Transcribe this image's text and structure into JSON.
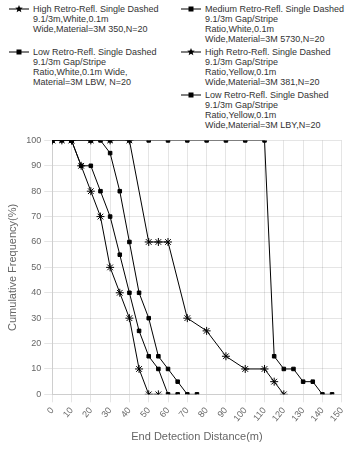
{
  "chart_data": {
    "type": "line",
    "xlabel": "End Detection Distance(m)",
    "ylabel": "Cumulative Frequency(%)",
    "xlim": [
      0,
      150
    ],
    "ylim": [
      0,
      100
    ],
    "xticks": [
      0,
      10,
      20,
      30,
      40,
      50,
      60,
      70,
      80,
      90,
      100,
      110,
      120,
      130,
      140,
      150
    ],
    "yticks": [
      0,
      10,
      20,
      30,
      40,
      50,
      60,
      70,
      80,
      90,
      100
    ],
    "grid": true,
    "legend": "upper right",
    "series": [
      {
        "name": "High Retro-Refl. Single Dashed\n9.1/3m,White,0.1m\nWide,Material=3M 350,N=20",
        "color": "#000000",
        "marker": "star",
        "line_style": "solid",
        "x": [
          0,
          5,
          10,
          15,
          20,
          25,
          30,
          35,
          40,
          45,
          50,
          55
        ],
        "values": [
          100,
          100,
          100,
          90,
          80,
          70,
          50,
          40,
          30,
          10,
          0,
          0
        ]
      },
      {
        "name": "Medium Retro-Refl. Single Dashed\n9.1/3m Gap/Stripe\nRatio,White,0.1m\nWide,Material=3M 5730,N=20",
        "color": "#000000",
        "marker": "square",
        "line_style": "solid",
        "x": [
          0,
          5,
          10,
          15,
          20,
          25,
          30,
          35,
          40,
          45,
          50,
          55,
          60,
          65
        ],
        "values": [
          100,
          100,
          100,
          90,
          90,
          80,
          70,
          55,
          40,
          25,
          15,
          10,
          0,
          0
        ]
      },
      {
        "name": "Low Retro-Refl. Single Dashed\n9.1/3m Gap/Stripe\nRatio,White,0.1m Wide,\nMaterial=3M LBW,  N=20",
        "color": "#000000",
        "marker": "square",
        "line_style": "solid",
        "x": [
          0,
          10,
          20,
          25,
          30,
          35,
          40,
          45,
          50,
          55,
          60,
          65,
          70,
          75
        ],
        "values": [
          100,
          100,
          100,
          100,
          95,
          80,
          60,
          40,
          30,
          15,
          10,
          5,
          0,
          0
        ]
      },
      {
        "name": "High Retro-Refl. Single Dashed\n9.1/3m Gap/Stripe\nRatio,Yellow,0.1m\nWide,Material=3M 381,N=20",
        "color": "#000000",
        "marker": "star",
        "line_style": "solid",
        "x": [
          0,
          10,
          20,
          30,
          40,
          50,
          55,
          60,
          70,
          80,
          90,
          100,
          110,
          115,
          120
        ],
        "values": [
          100,
          100,
          100,
          100,
          100,
          60,
          60,
          60,
          30,
          25,
          15,
          10,
          10,
          5,
          0
        ]
      },
      {
        "name": "Low Retro-Refl. Single Dashed\n9.1/3m Gap/Stripe\nRatio,Yellow,0.1m\nWide,Material=3M LBY,N=20",
        "color": "#000000",
        "marker": "square",
        "line_style": "solid",
        "x": [
          0,
          10,
          20,
          30,
          40,
          50,
          60,
          70,
          80,
          90,
          100,
          110,
          115,
          120,
          125,
          130,
          135,
          140,
          145
        ],
        "values": [
          100,
          100,
          100,
          100,
          100,
          100,
          100,
          100,
          100,
          100,
          100,
          100,
          15,
          10,
          10,
          5,
          5,
          0,
          0
        ]
      }
    ]
  }
}
